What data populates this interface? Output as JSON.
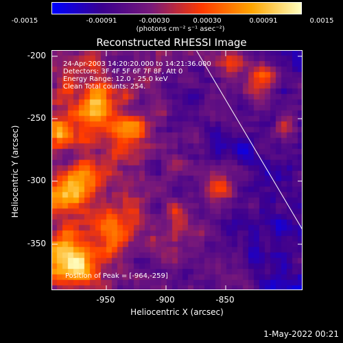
{
  "colorbar": {
    "ticks": [
      "-0.0015",
      "-0.00091",
      "-0.00030",
      "0.00030",
      "0.00091",
      "0.0015"
    ],
    "units": "(photons cm⁻² s⁻¹ asec⁻²)"
  },
  "plot": {
    "title": "Reconstructed RHESSI Image",
    "info": [
      "24-Apr-2003 14:20:20.000 to 14:21:36.000",
      "Detectors: 3F 4F 5F 6F 7F 8F, Att 0",
      "Energy Range: 12.0 - 25.0 keV",
      "Clean    Total counts: 254."
    ],
    "peak": "Position of Peak = [-964,-259]",
    "xlabel": "Heliocentric X (arcsec)",
    "ylabel": "Heliocentric Y (arcsec)",
    "xticks": [
      "-950",
      "-900",
      "-850"
    ],
    "yticks": [
      "-200",
      "-250",
      "-300",
      "-350"
    ]
  },
  "timestamp": "1-May-2022 00:21",
  "chart_data": {
    "type": "heatmap",
    "title": "Reconstructed RHESSI Image",
    "xlabel": "Heliocentric X (arcsec)",
    "ylabel": "Heliocentric Y (arcsec)",
    "xlim": [
      -993,
      -887
    ],
    "ylim": [
      -390,
      -195
    ],
    "value_range": [
      -0.0015,
      0.0015
    ],
    "peak": [
      -964,
      -259
    ],
    "limb_line": [
      [
        -932,
        -195
      ],
      [
        -872,
        -390
      ]
    ],
    "colormap_stops": [
      "#0000ff",
      "#3b0090",
      "#7a1a7a",
      "#ff3a00",
      "#ffa500",
      "#ffffc0"
    ]
  }
}
